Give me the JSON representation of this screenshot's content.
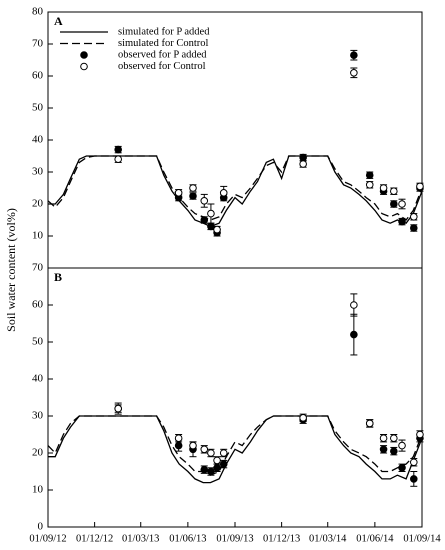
{
  "chart_data": [
    {
      "type": "line",
      "label": "A",
      "ylabel": "Soil water content (vol%)",
      "xlim": [
        "01/09/12",
        "01/09/14"
      ],
      "ylim": [
        0,
        80
      ],
      "yticks": [
        10,
        20,
        30,
        40,
        50,
        60,
        70,
        80
      ],
      "legend": "upper-left",
      "x": [
        "01/09/12",
        "15/09/12",
        "01/10/12",
        "15/10/12",
        "01/11/12",
        "15/11/12",
        "01/12/12",
        "15/12/12",
        "01/01/13",
        "15/01/13",
        "01/02/13",
        "15/02/13",
        "01/03/13",
        "15/03/13",
        "01/04/13",
        "15/04/13",
        "01/05/13",
        "15/05/13",
        "01/06/13",
        "15/06/13",
        "01/07/13",
        "15/07/13",
        "01/08/13",
        "15/08/13",
        "01/09/13",
        "15/09/13",
        "01/10/13",
        "15/10/13",
        "01/11/13",
        "15/11/13",
        "01/12/13",
        "15/12/13",
        "01/01/14",
        "15/01/14",
        "01/02/14",
        "15/02/14",
        "01/03/14",
        "15/03/14",
        "01/04/14",
        "15/04/14",
        "01/05/14",
        "15/05/14",
        "01/06/14",
        "15/06/14",
        "01/07/14",
        "15/07/14",
        "01/08/14",
        "15/08/14",
        "01/09/14"
      ],
      "series": [
        {
          "name": "simulated for P added",
          "type": "line",
          "style": "solid",
          "color": "#000000",
          "values": [
            20,
            20,
            23,
            28,
            34,
            35,
            35,
            35,
            35,
            35,
            35,
            35,
            35,
            35,
            35,
            29,
            24,
            21,
            18,
            15,
            14,
            13,
            14,
            18,
            22,
            20,
            24,
            27,
            33,
            34,
            28,
            35,
            35,
            35,
            35,
            35,
            35,
            30,
            26,
            25,
            23,
            21,
            18,
            15,
            14,
            15,
            14,
            17,
            24
          ]
        },
        {
          "name": "simulated for Control",
          "type": "line",
          "style": "dashed",
          "color": "#000000",
          "values": [
            21,
            19,
            22,
            27,
            33,
            34.5,
            35,
            35,
            35,
            35,
            35,
            35,
            35,
            35,
            35,
            30,
            25,
            22,
            19,
            17,
            16,
            15,
            16,
            20,
            23,
            22,
            25,
            28,
            32,
            33,
            30,
            35,
            35,
            35,
            35,
            35,
            35,
            31,
            27,
            26,
            24,
            22,
            20,
            17,
            16,
            17,
            15,
            18,
            25
          ]
        },
        {
          "name": "observed for P added",
          "type": "scatter",
          "style": "filled",
          "color": "#000000",
          "x": [
            "16/01/13",
            "14/05/13",
            "11/06/13",
            "03/07/13",
            "16/07/13",
            "28/07/13",
            "10/08/13",
            "12/01/14",
            "21/04/14",
            "22/05/14",
            "18/06/14",
            "08/07/14",
            "24/07/14",
            "16/08/14",
            "28/08/14"
          ],
          "values": [
            37,
            22,
            22.5,
            15,
            13,
            11,
            22,
            34.5,
            66.5,
            29,
            24,
            20,
            14.5,
            12.5,
            25
          ],
          "errors": [
            1,
            1,
            1,
            1,
            1,
            1,
            1,
            1,
            1.5,
            1,
            1,
            1,
            1,
            1,
            1
          ]
        },
        {
          "name": "observed for Control",
          "type": "scatter",
          "style": "open",
          "color": "#000000",
          "x": [
            "16/01/13",
            "14/05/13",
            "11/06/13",
            "03/07/13",
            "16/07/13",
            "28/07/13",
            "10/08/13",
            "12/01/14",
            "21/04/14",
            "22/05/14",
            "18/06/14",
            "08/07/14",
            "24/07/14",
            "16/08/14",
            "28/08/14"
          ],
          "values": [
            34,
            23.5,
            25,
            21,
            17,
            12,
            23.5,
            32.5,
            61,
            26,
            25,
            24,
            20,
            16,
            25.5
          ],
          "errors": [
            1,
            1,
            1,
            2,
            3,
            1,
            2,
            1,
            1.5,
            1,
            1,
            1,
            1.5,
            1,
            1
          ]
        }
      ]
    },
    {
      "type": "line",
      "label": "B",
      "xlim": [
        "01/09/12",
        "01/09/14"
      ],
      "ylim": [
        0,
        70
      ],
      "yticks": [
        0,
        10,
        20,
        30,
        40,
        50,
        60,
        70
      ],
      "xticks": [
        {
          "value": "01/09/12",
          "label": "01/09/12"
        },
        {
          "value": "01/12/12",
          "label": "01/12/12"
        },
        {
          "value": "01/03/13",
          "label": "01/03/13"
        },
        {
          "value": "01/06/13",
          "label": "01/06/13"
        },
        {
          "value": "01/09/13",
          "label": "01/09/13"
        },
        {
          "value": "01/12/13",
          "label": "01/12/13"
        },
        {
          "value": "01/03/14",
          "label": "01/03/14"
        },
        {
          "value": "01/06/14",
          "label": "01/06/14"
        },
        {
          "value": "01/09/14",
          "label": "01/09/14"
        }
      ],
      "x": [
        "01/09/12",
        "15/09/12",
        "01/10/12",
        "15/10/12",
        "01/11/12",
        "15/11/12",
        "01/12/12",
        "15/12/12",
        "01/01/13",
        "15/01/13",
        "01/02/13",
        "15/02/13",
        "01/03/13",
        "15/03/13",
        "01/04/13",
        "15/04/13",
        "01/05/13",
        "15/05/13",
        "01/06/13",
        "15/06/13",
        "01/07/13",
        "15/07/13",
        "01/08/13",
        "15/08/13",
        "01/09/13",
        "15/09/13",
        "01/10/13",
        "15/10/13",
        "01/11/13",
        "15/11/13",
        "01/12/13",
        "15/12/13",
        "01/01/14",
        "15/01/14",
        "01/02/14",
        "15/02/14",
        "01/03/14",
        "15/03/14",
        "01/04/14",
        "15/04/14",
        "01/05/14",
        "15/05/14",
        "01/06/14",
        "15/06/14",
        "01/07/14",
        "15/07/14",
        "01/08/14",
        "15/08/14",
        "01/09/14"
      ],
      "series": [
        {
          "type": "line",
          "style": "solid",
          "color": "#000000",
          "values": [
            19,
            19,
            24,
            27,
            30,
            30,
            30,
            30,
            30,
            30,
            30,
            30,
            30,
            30,
            30,
            26,
            20,
            17,
            15,
            13,
            12,
            12,
            13,
            17,
            21,
            20,
            23,
            26,
            29,
            30,
            30,
            30,
            30,
            30,
            30,
            30,
            30,
            25,
            22,
            20,
            19,
            17,
            15,
            13,
            13,
            14,
            13,
            18,
            24
          ]
        },
        {
          "type": "line",
          "style": "dashed",
          "color": "#000000",
          "values": [
            22,
            20,
            25,
            28,
            30,
            30,
            30,
            30,
            30,
            30,
            30,
            30,
            30,
            30,
            30,
            27,
            22,
            19,
            17,
            15,
            15,
            14,
            15,
            19,
            23,
            22,
            25,
            27,
            29,
            30,
            30,
            30,
            30,
            30,
            30,
            30,
            30,
            26,
            23,
            21,
            20,
            19,
            17,
            15,
            15,
            16,
            17,
            19,
            25
          ]
        },
        {
          "type": "scatter",
          "style": "filled",
          "color": "#000000",
          "x": [
            "16/01/13",
            "14/05/13",
            "11/06/13",
            "03/07/13",
            "16/07/13",
            "28/07/13",
            "10/08/13",
            "12/01/14",
            "21/04/14",
            "22/05/14",
            "18/06/14",
            "08/07/14",
            "24/07/14",
            "16/08/14",
            "28/08/14"
          ],
          "values": [
            32,
            22,
            21,
            15.5,
            15,
            16,
            17,
            29,
            52,
            28,
            21,
            20.5,
            16,
            13,
            24
          ],
          "errors": [
            1.5,
            1.5,
            2,
            1,
            1,
            1,
            1,
            1,
            5.5,
            1,
            1,
            1,
            1,
            2,
            1
          ]
        },
        {
          "type": "scatter",
          "style": "open",
          "color": "#000000",
          "x": [
            "16/01/13",
            "14/05/13",
            "11/06/13",
            "03/07/13",
            "16/07/13",
            "28/07/13",
            "10/08/13",
            "12/01/14",
            "21/04/14",
            "22/05/14",
            "18/06/14",
            "08/07/14",
            "24/07/14",
            "16/08/14",
            "28/08/14"
          ],
          "values": [
            32,
            24,
            22,
            21,
            20,
            18,
            20,
            29.5,
            60,
            28,
            24,
            24,
            22,
            17.5,
            25
          ],
          "errors": [
            1,
            1,
            1,
            1,
            1,
            1,
            1,
            1,
            3,
            1,
            1,
            1,
            1.5,
            1,
            1
          ]
        }
      ]
    }
  ]
}
